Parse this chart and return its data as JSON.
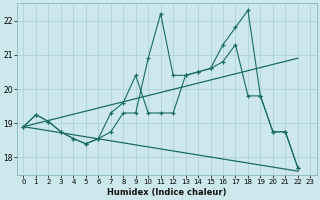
{
  "xlabel": "Humidex (Indice chaleur)",
  "xlim": [
    -0.5,
    23.5
  ],
  "ylim": [
    17.5,
    22.5
  ],
  "yticks": [
    18,
    19,
    20,
    21,
    22
  ],
  "xticks": [
    0,
    1,
    2,
    3,
    4,
    5,
    6,
    7,
    8,
    9,
    10,
    11,
    12,
    13,
    14,
    15,
    16,
    17,
    18,
    19,
    20,
    21,
    22,
    23
  ],
  "bg_color": "#cce8ed",
  "grid_color": "#aacdd4",
  "line_color": "#1a6b62",
  "line1_x": [
    0,
    1,
    2,
    3,
    4,
    5,
    6,
    7,
    8,
    9,
    10,
    11,
    12,
    13,
    14,
    15,
    16,
    17,
    18,
    19,
    20,
    21,
    22
  ],
  "line1_y": [
    18.9,
    19.25,
    19.05,
    18.75,
    18.55,
    18.4,
    18.55,
    18.75,
    19.3,
    19.3,
    20.9,
    22.2,
    20.4,
    20.4,
    20.5,
    20.6,
    21.3,
    21.8,
    22.3,
    19.8,
    18.75,
    18.75,
    17.7
  ],
  "line2_x": [
    0,
    1,
    2,
    3,
    4,
    5,
    6,
    7,
    8,
    9,
    10,
    11,
    12,
    13,
    14,
    15,
    16,
    17,
    18,
    19,
    20,
    21,
    22
  ],
  "line2_y": [
    18.9,
    19.25,
    19.05,
    18.75,
    18.55,
    18.4,
    18.55,
    19.3,
    19.6,
    20.4,
    19.3,
    19.3,
    19.3,
    20.4,
    20.5,
    20.6,
    20.8,
    21.3,
    19.8,
    19.8,
    18.75,
    18.75,
    17.7
  ],
  "line3_x": [
    0,
    22
  ],
  "line3_y": [
    18.9,
    20.9
  ],
  "line4_x": [
    0,
    22
  ],
  "line4_y": [
    18.9,
    17.6
  ]
}
